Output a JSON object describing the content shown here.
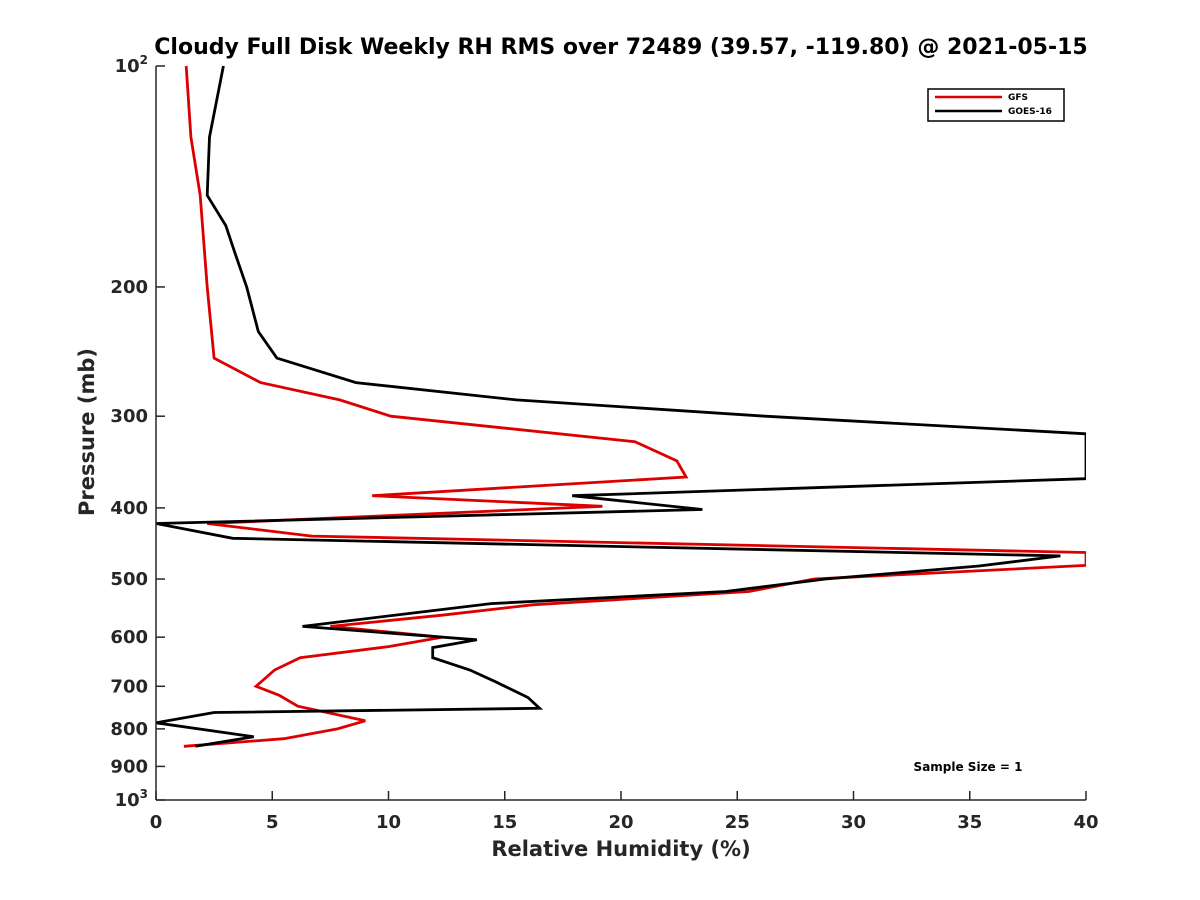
{
  "chart_data": {
    "type": "line",
    "title": "Cloudy Full Disk Weekly RH RMS over 72489 (39.57, -119.80) @ 2021-05-15",
    "xlabel": "Relative Humidity (%)",
    "ylabel": "Pressure (mb)",
    "xlim": [
      0,
      40
    ],
    "ylim": [
      100,
      1000
    ],
    "y_scale": "log",
    "y_reversed": true,
    "x_ticks": [
      "0",
      "5",
      "10",
      "15",
      "20",
      "25",
      "30",
      "35",
      "40"
    ],
    "y_ticks": [
      {
        "value": 100,
        "base": "10",
        "exp": "2"
      },
      {
        "value": 200,
        "label": "200"
      },
      {
        "value": 300,
        "label": "300"
      },
      {
        "value": 400,
        "label": "400"
      },
      {
        "value": 500,
        "label": "500"
      },
      {
        "value": 600,
        "label": "600"
      },
      {
        "value": 700,
        "label": "700"
      },
      {
        "value": 800,
        "label": "800"
      },
      {
        "value": 900,
        "label": "900"
      },
      {
        "value": 1000,
        "base": "10",
        "exp": "3"
      }
    ],
    "grid": false,
    "legend_position": "top-right",
    "annotation": "Sample Size = 1",
    "series": [
      {
        "name": "GFS",
        "color": "#dd0000",
        "points": [
          [
            1.3,
            100
          ],
          [
            1.5,
            125
          ],
          [
            1.9,
            150
          ],
          [
            2.2,
            200
          ],
          [
            2.5,
            250
          ],
          [
            4.5,
            270
          ],
          [
            7.9,
            285
          ],
          [
            10.1,
            300
          ],
          [
            20.6,
            325
          ],
          [
            22.4,
            345
          ],
          [
            22.8,
            363
          ],
          [
            9.3,
            385
          ],
          [
            19.2,
            398
          ],
          [
            2.2,
            420
          ],
          [
            6.7,
            437
          ],
          [
            40.0,
            460
          ],
          [
            40.0,
            479
          ],
          [
            28.3,
            500
          ],
          [
            25.5,
            520
          ],
          [
            16.2,
            542
          ],
          [
            12.3,
            560
          ],
          [
            7.5,
            580
          ],
          [
            12.3,
            600
          ],
          [
            10.0,
            618
          ],
          [
            6.2,
            640
          ],
          [
            5.1,
            665
          ],
          [
            4.3,
            700
          ],
          [
            5.3,
            720
          ],
          [
            6.1,
            745
          ],
          [
            9.0,
            780
          ],
          [
            7.8,
            800
          ],
          [
            5.5,
            825
          ],
          [
            1.2,
            845
          ]
        ]
      },
      {
        "name": "GOES-16",
        "color": "#000000",
        "points": [
          [
            2.9,
            100
          ],
          [
            2.3,
            125
          ],
          [
            2.2,
            150
          ],
          [
            3.0,
            165
          ],
          [
            3.4,
            180
          ],
          [
            3.9,
            200
          ],
          [
            4.4,
            230
          ],
          [
            5.2,
            250
          ],
          [
            8.6,
            270
          ],
          [
            15.5,
            285
          ],
          [
            26.2,
            300
          ],
          [
            40.0,
            317
          ],
          [
            40.0,
            365
          ],
          [
            17.9,
            385
          ],
          [
            23.5,
            402
          ],
          [
            0.0,
            420
          ],
          [
            3.3,
            440
          ],
          [
            38.9,
            465
          ],
          [
            35.4,
            480
          ],
          [
            28.8,
            500
          ],
          [
            24.5,
            520
          ],
          [
            14.4,
            540
          ],
          [
            6.3,
            580
          ],
          [
            13.8,
            605
          ],
          [
            11.9,
            620
          ],
          [
            11.9,
            640
          ],
          [
            13.5,
            665
          ],
          [
            14.6,
            690
          ],
          [
            16.0,
            725
          ],
          [
            16.5,
            750
          ],
          [
            2.5,
            760
          ],
          [
            0.0,
            785
          ],
          [
            4.2,
            820
          ],
          [
            1.7,
            845
          ]
        ]
      }
    ]
  }
}
